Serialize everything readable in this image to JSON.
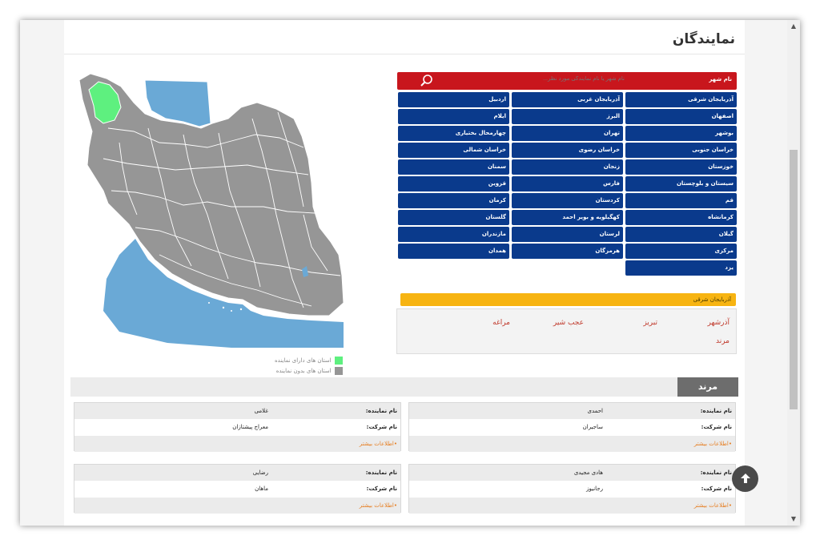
{
  "page_title": "نمایندگان",
  "search": {
    "label": "نام شهر",
    "placeholder": "نام شهر یا نام نمایندگی مورد نظر..."
  },
  "provinces": [
    "آذربایجان شرقی",
    "آذربایجان غربی",
    "اردبیل",
    "اصفهان",
    "البرز",
    "ایلام",
    "بوشهر",
    "تهران",
    "چهارمحال بختیاری",
    "خراسان جنوبی",
    "خراسان رضوی",
    "خراسان شمالی",
    "خوزستان",
    "زنجان",
    "سمنان",
    "سیستان و بلوچستان",
    "فارس",
    "قزوین",
    "قم",
    "کردستان",
    "کرمان",
    "کرمانشاه",
    "کهگیلویه و بویر احمد",
    "گلستان",
    "گیلان",
    "لرستان",
    "مازندران",
    "مرکزی",
    "هرمزگان",
    "همدان",
    "یزد"
  ],
  "selected_province": "آذربایجان شرقی",
  "cities": [
    "آذرشهر",
    "تبریز",
    "عجب شیر",
    "مراغه",
    "مرند"
  ],
  "legend": {
    "with_rep": "استان های دارای نماینده",
    "without_rep": "استان های بدون نماینده"
  },
  "colors": {
    "with_rep": "#5ef07f",
    "without_rep": "#969696",
    "water": "#6aa9d6",
    "search_bar": "#c8161d",
    "province_button": "#0a3a8c",
    "breadcrumb": "#f7b412"
  },
  "section_title": "مرند",
  "labels": {
    "rep_name": "نام نماینده:",
    "company": "نام شرکت:",
    "more": "•اطلاعات بیشتر"
  },
  "representatives": [
    {
      "name": "احمدی",
      "company": "ساجیران"
    },
    {
      "name": "غلامی",
      "company": "معراج پیشتازان"
    },
    {
      "name": "هادی مجیدی",
      "company": "رجانیوز"
    },
    {
      "name": "رضایی",
      "company": "ماهان"
    }
  ],
  "scroll_top_icon": "arrow-up-icon"
}
